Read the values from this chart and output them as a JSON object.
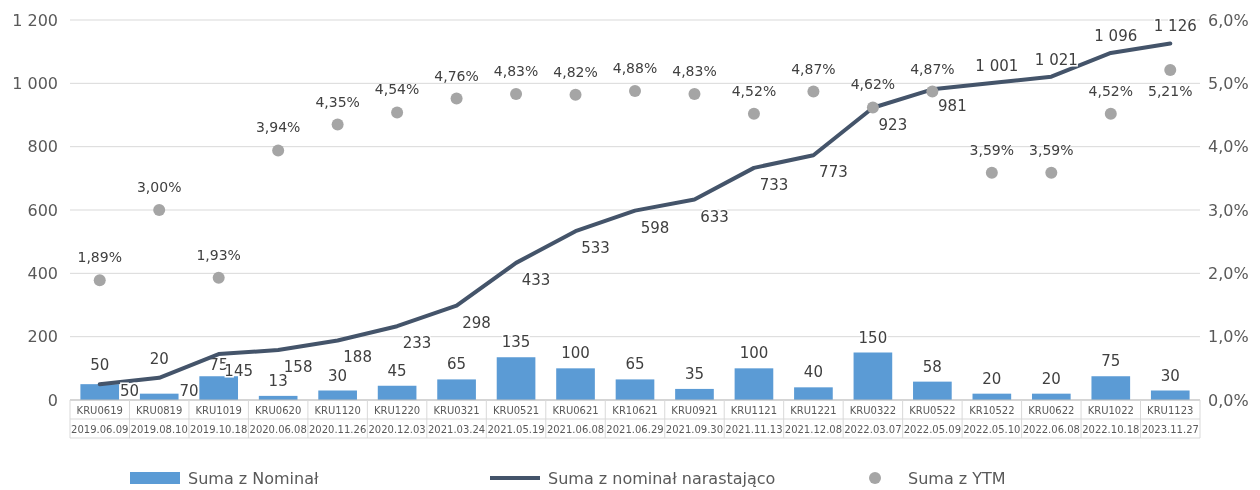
{
  "chart_data": {
    "type": "bar",
    "categories": [
      "KRU0619\n2019.06.09",
      "KRU0819\n2019.08.10",
      "KRU1019\n2019.10.18",
      "KRU0620\n2020.06.08",
      "KRU1120\n2020.11.26",
      "KRU1220\n2020.12.03",
      "KRU0321\n2021.03.24",
      "KRU0521\n2021.05.19",
      "KRU0621\n2021.06.08",
      "KR10621\n2021.06.29",
      "KRU0921\n2021.09.30",
      "KRU1121\n2021.11.13",
      "KRU1221\n2021.12.08",
      "KRU0322\n2022.03.07",
      "KRU0522\n2022.05.09",
      "KR10522\n2022.05.10",
      "KRU0622\n2022.06.08",
      "KRU1022\n2022.10.18",
      "KRU1123\n2023.11.27"
    ],
    "series": [
      {
        "name": "Suma z Nominał",
        "color": "#5b9bd5",
        "values": [
          50,
          20,
          75,
          13,
          30,
          45,
          65,
          135,
          100,
          65,
          35,
          100,
          40,
          150,
          58,
          20,
          20,
          75,
          30
        ],
        "value_labels": [
          "50",
          "20",
          "75",
          "13",
          "30",
          "45",
          "65",
          "135",
          "100",
          "65",
          "35",
          "100",
          "40",
          "150",
          "58",
          "20",
          "20",
          "75",
          "30"
        ]
      },
      {
        "name": "Suma z nominał narastająco",
        "type": "line",
        "color": "#44546a",
        "marker": "none",
        "values": [
          50,
          70,
          145,
          158,
          188,
          233,
          298,
          433,
          533,
          598,
          633,
          733,
          773,
          923,
          981,
          1001,
          1021,
          1096,
          1126
        ],
        "value_labels": [
          "50",
          "70",
          "145",
          "158",
          "188",
          "233",
          "298",
          "433",
          "533",
          "598",
          "633",
          "733",
          "773",
          "923",
          "981",
          "1 001",
          "1 021",
          "1 096",
          "1 126"
        ]
      },
      {
        "name": "Suma z YTM",
        "type": "scatter",
        "axis": "y2",
        "color": "#a5a5a5",
        "marker": "circle",
        "values": [
          1.89,
          3.0,
          1.93,
          3.94,
          4.35,
          4.54,
          4.76,
          4.83,
          4.82,
          4.88,
          4.83,
          4.52,
          4.87,
          4.62,
          4.87,
          3.59,
          3.59,
          4.52,
          5.21
        ],
        "value_labels": [
          "1,89%",
          "3,00%",
          "1,93%",
          "3,94%",
          "4,35%",
          "4,54%",
          "4,76%",
          "4,83%",
          "4,82%",
          "4,88%",
          "4,83%",
          "4,52%",
          "4,87%",
          "4,62%",
          "4,87%",
          "3,59%",
          "3,59%",
          "4,52%",
          "5,21%"
        ]
      }
    ],
    "ylim": [
      0,
      1200
    ],
    "yticks": [
      0,
      200,
      400,
      600,
      800,
      {
        "value": 1000,
        "label": "1 000"
      },
      {
        "value": 1200,
        "label": "1 200"
      }
    ],
    "y2lim": [
      0,
      6
    ],
    "y2ticks": [
      {
        "value": 0,
        "label": "0,0%"
      },
      {
        "value": 1,
        "label": "1,0%"
      },
      {
        "value": 2,
        "label": "2,0%"
      },
      {
        "value": 3,
        "label": "3,0%"
      },
      {
        "value": 4,
        "label": "4,0%"
      },
      {
        "value": 5,
        "label": "5,0%"
      },
      {
        "value": 6,
        "label": "6,0%"
      }
    ],
    "grid": "y",
    "legend": "bottom"
  }
}
